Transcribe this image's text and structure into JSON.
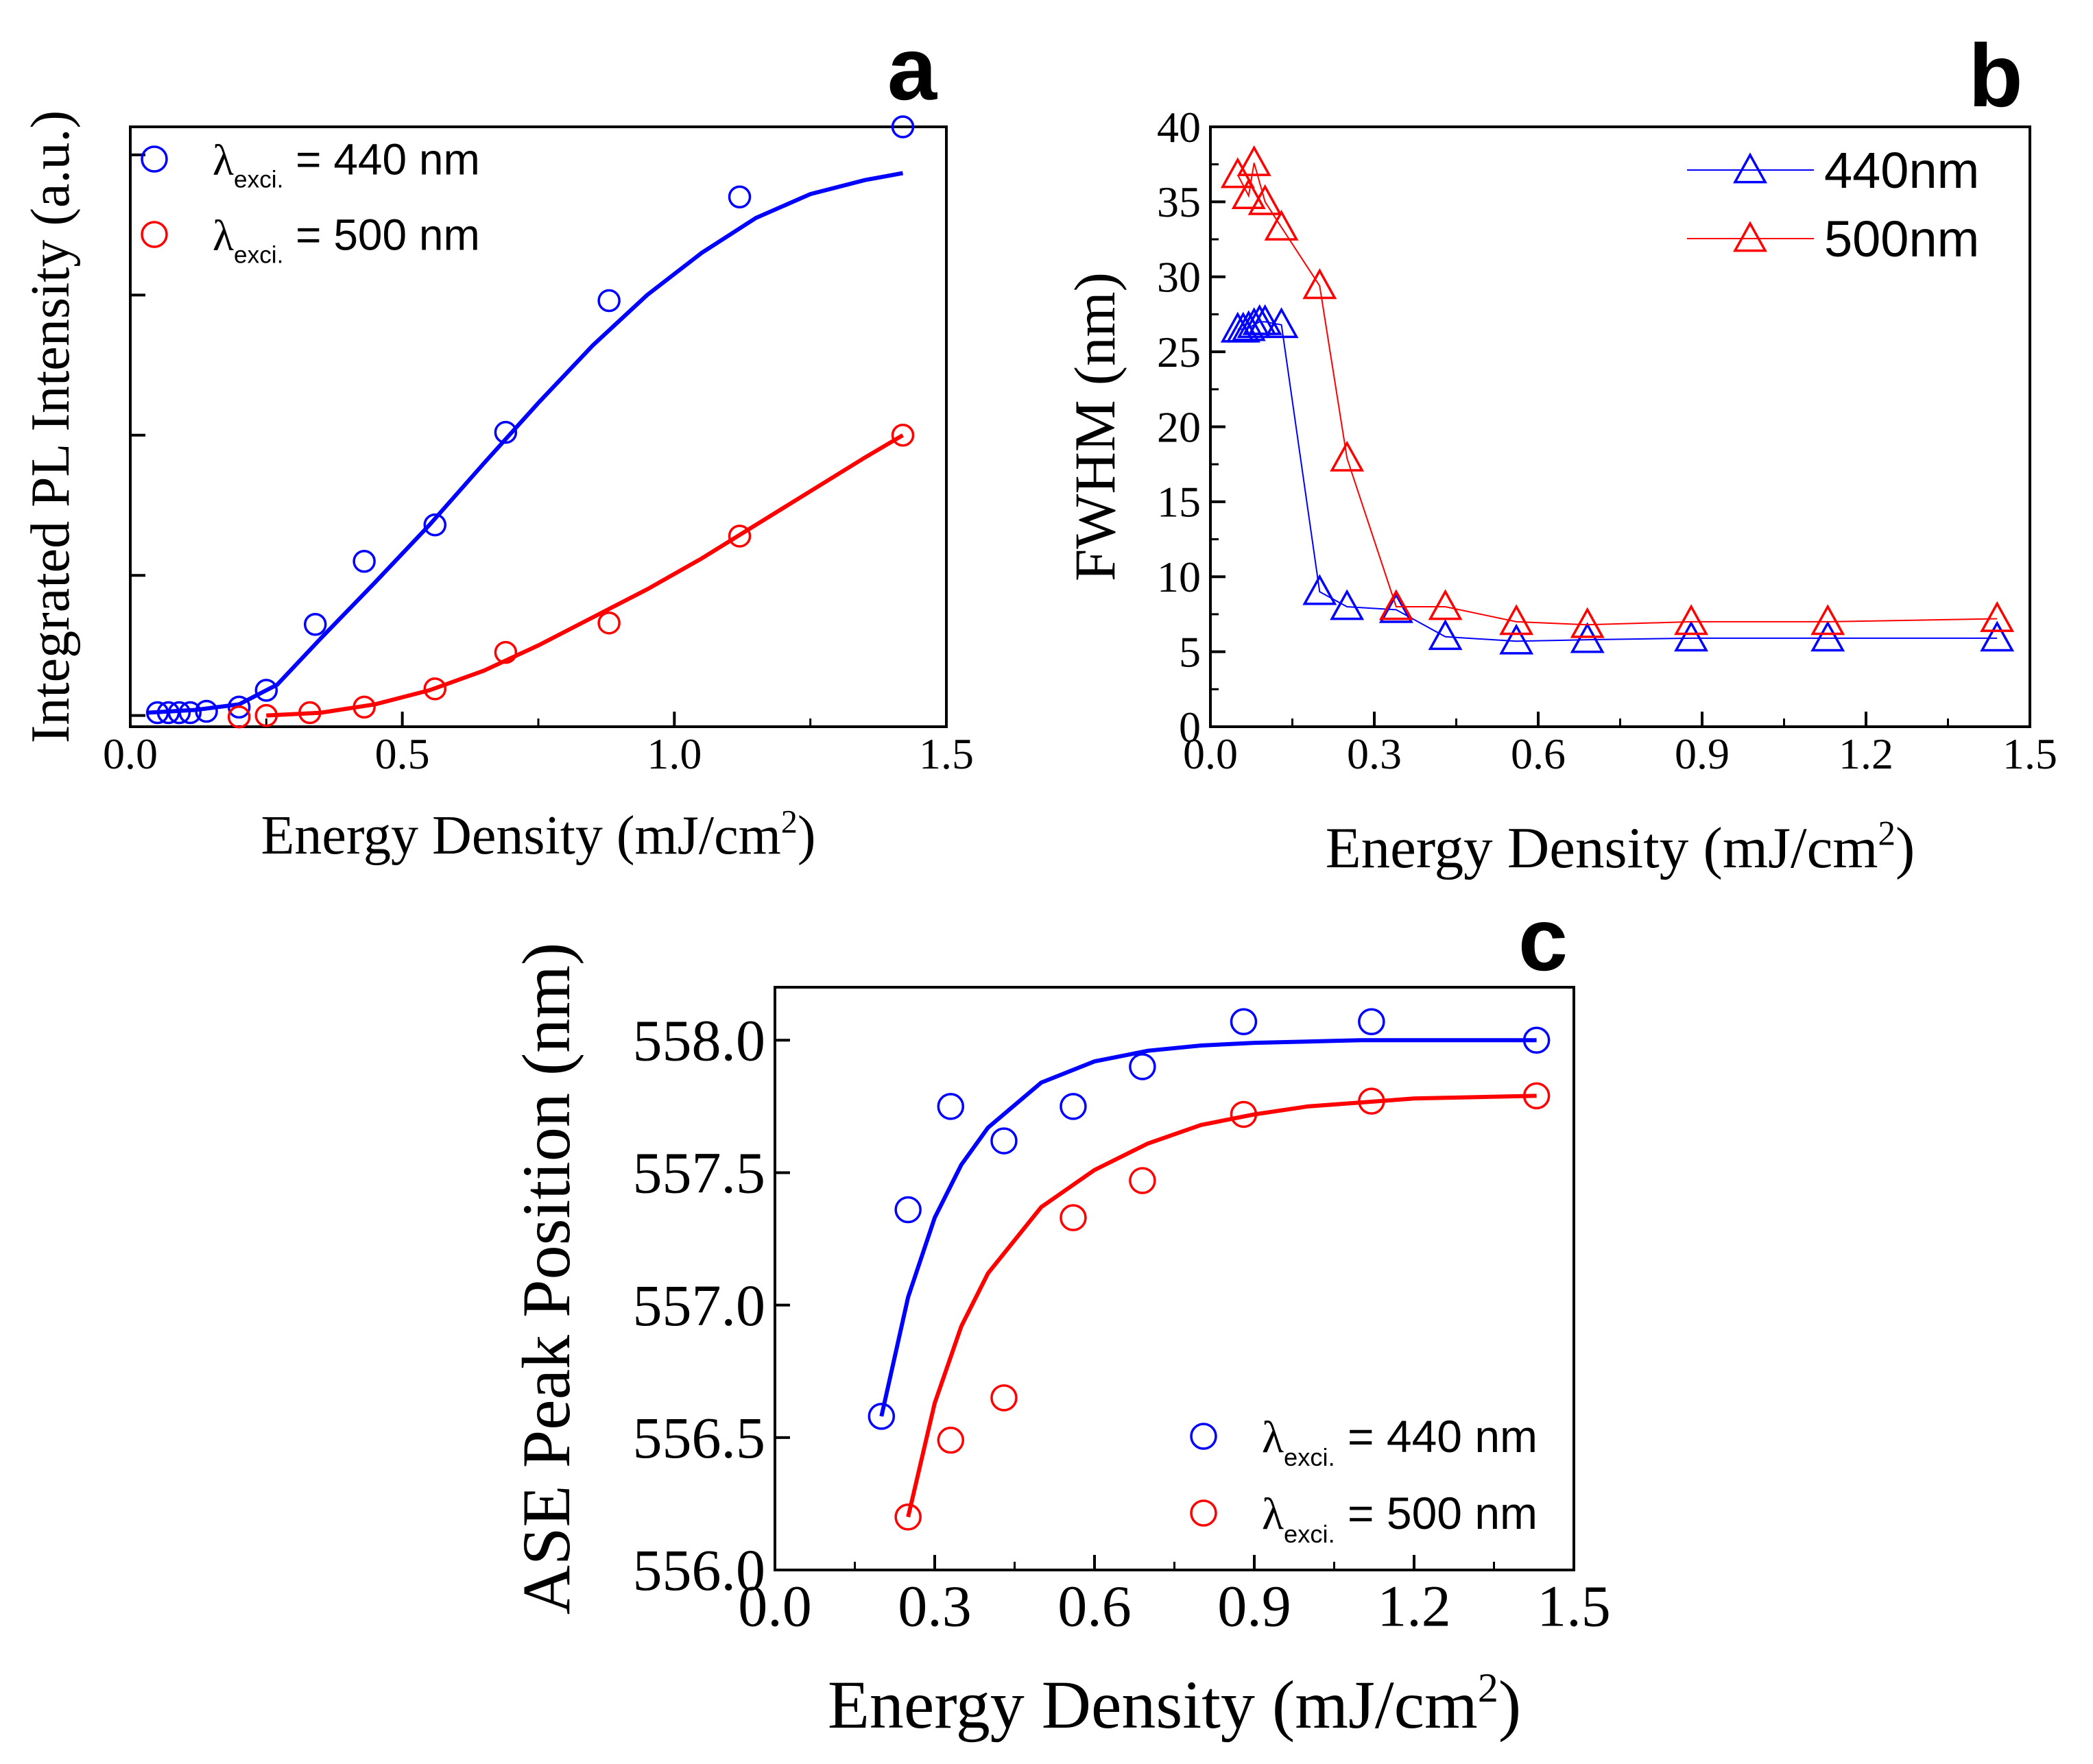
{
  "figure": {
    "colors": {
      "blue": "#0000ff",
      "red": "#ff0000",
      "axis": "#000000"
    }
  },
  "chart_data": [
    {
      "panel": "a",
      "type": "scatter",
      "title": "",
      "xlabel": "Energy Density (mJ/cm",
      "xlabel_sup": "2",
      "xlabel_close": ")",
      "ylabel": "Integrated PL Intensity (a.u.)",
      "xlim": [
        0.0,
        1.5
      ],
      "ylim": [
        -0.08,
        4.2
      ],
      "x_ticks": [
        0.0,
        0.5,
        1.0,
        1.5
      ],
      "x_tick_labels": [
        "0.0",
        "0.5",
        "1.0",
        "1.5"
      ],
      "y_ticks": [
        0,
        1,
        2,
        3,
        4
      ],
      "y_tick_labels": [],
      "legend_position": "top-left",
      "series": [
        {
          "name": "440 nm",
          "legend_lambda": "λ",
          "legend_sub": "exci.",
          "legend_rest": " = 440 nm",
          "color": "#0000ff",
          "marker": "circle",
          "fit": "sigmoid",
          "fit_x_range": [
            0.03,
            1.42
          ],
          "fit_curve": [
            [
              0.03,
              0.02
            ],
            [
              0.12,
              0.04
            ],
            [
              0.2,
              0.08
            ],
            [
              0.27,
              0.22
            ],
            [
              0.35,
              0.55
            ],
            [
              0.45,
              0.95
            ],
            [
              0.55,
              1.36
            ],
            [
              0.65,
              1.8
            ],
            [
              0.75,
              2.23
            ],
            [
              0.85,
              2.64
            ],
            [
              0.95,
              3.0
            ],
            [
              1.05,
              3.3
            ],
            [
              1.15,
              3.55
            ],
            [
              1.25,
              3.72
            ],
            [
              1.35,
              3.82
            ],
            [
              1.42,
              3.87
            ]
          ],
          "x": [
            0.05,
            0.07,
            0.09,
            0.11,
            0.14,
            0.2,
            0.25,
            0.34,
            0.43,
            0.56,
            0.69,
            0.88,
            1.12,
            1.42
          ],
          "y": [
            0.02,
            0.02,
            0.02,
            0.02,
            0.03,
            0.06,
            0.18,
            0.65,
            1.1,
            1.36,
            2.02,
            2.96,
            3.7,
            4.2
          ]
        },
        {
          "name": "500 nm",
          "legend_lambda": "λ",
          "legend_sub": "exci.",
          "legend_rest": " = 500 nm",
          "color": "#ff0000",
          "marker": "circle",
          "fit": "power",
          "fit_x_range": [
            0.25,
            1.42
          ],
          "fit_curve": [
            [
              0.25,
              0.0
            ],
            [
              0.35,
              0.02
            ],
            [
              0.45,
              0.08
            ],
            [
              0.55,
              0.18
            ],
            [
              0.65,
              0.32
            ],
            [
              0.75,
              0.5
            ],
            [
              0.85,
              0.7
            ],
            [
              0.95,
              0.9
            ],
            [
              1.05,
              1.12
            ],
            [
              1.15,
              1.36
            ],
            [
              1.25,
              1.6
            ],
            [
              1.35,
              1.84
            ],
            [
              1.42,
              2.0
            ]
          ],
          "x": [
            0.2,
            0.25,
            0.33,
            0.43,
            0.56,
            0.69,
            0.88,
            1.12,
            1.42
          ],
          "y": [
            -0.01,
            0.0,
            0.02,
            0.06,
            0.19,
            0.45,
            0.66,
            1.28,
            2.0
          ]
        }
      ]
    },
    {
      "panel": "b",
      "type": "line",
      "title": "",
      "xlabel": "Energy Density (mJ/cm",
      "xlabel_sup": "2",
      "xlabel_close": ")",
      "ylabel": "FWHM (nm)",
      "xlim": [
        0.0,
        1.5
      ],
      "ylim": [
        0,
        40
      ],
      "x_ticks": [
        0.0,
        0.3,
        0.6,
        0.9,
        1.2,
        1.5
      ],
      "x_tick_labels": [
        "0.0",
        "0.3",
        "0.6",
        "0.9",
        "1.2",
        "1.5"
      ],
      "y_ticks": [
        0,
        5,
        10,
        15,
        20,
        25,
        30,
        35,
        40
      ],
      "y_tick_labels": [
        "0",
        "5",
        "10",
        "15",
        "20",
        "25",
        "30",
        "35",
        "40"
      ],
      "legend_position": "top-right",
      "series": [
        {
          "name": "440nm",
          "color": "#0000ff",
          "marker": "triangle",
          "x": [
            0.05,
            0.06,
            0.07,
            0.08,
            0.09,
            0.1,
            0.13,
            0.2,
            0.25,
            0.34,
            0.43,
            0.56,
            0.69,
            0.88,
            1.13,
            1.44
          ],
          "y": [
            26.5,
            26.5,
            26.6,
            26.8,
            27.0,
            27.0,
            26.8,
            9.0,
            8.0,
            7.8,
            6.0,
            5.7,
            5.8,
            5.9,
            5.9,
            5.9
          ]
        },
        {
          "name": "500nm",
          "color": "#ff0000",
          "marker": "triangle",
          "x": [
            0.05,
            0.07,
            0.08,
            0.1,
            0.13,
            0.2,
            0.25,
            0.34,
            0.43,
            0.56,
            0.69,
            0.88,
            1.13,
            1.44
          ],
          "y": [
            36.8,
            35.4,
            37.6,
            35.0,
            33.3,
            29.4,
            17.9,
            8.0,
            8.0,
            7.0,
            6.8,
            7.0,
            7.0,
            7.2
          ]
        }
      ]
    },
    {
      "panel": "c",
      "type": "scatter",
      "title": "",
      "xlabel": "Energy Density (mJ/cm",
      "xlabel_sup": "2",
      "xlabel_close": ")",
      "ylabel": "ASE Peak Position (nm)",
      "xlim": [
        0.0,
        1.5
      ],
      "ylim": [
        556.0,
        558.2
      ],
      "x_ticks": [
        0.0,
        0.3,
        0.6,
        0.9,
        1.2,
        1.5
      ],
      "x_tick_labels": [
        "0.0",
        "0.3",
        "0.6",
        "0.9",
        "1.2",
        "1.5"
      ],
      "y_ticks": [
        556.0,
        556.5,
        557.0,
        557.5,
        558.0
      ],
      "y_tick_labels": [
        "556.0",
        "556.5",
        "557.0",
        "557.5",
        "558.0"
      ],
      "legend_position": "bottom-right",
      "series": [
        {
          "name": "440 nm",
          "legend_lambda": "λ",
          "legend_sub": "exci.",
          "legend_rest": " = 440 nm",
          "color": "#0000ff",
          "marker": "circle",
          "fit": "exponential",
          "fit_curve": [
            [
              0.2,
              556.58
            ],
            [
              0.25,
              557.03
            ],
            [
              0.3,
              557.33
            ],
            [
              0.35,
              557.53
            ],
            [
              0.4,
              557.67
            ],
            [
              0.5,
              557.84
            ],
            [
              0.6,
              557.92
            ],
            [
              0.7,
              557.96
            ],
            [
              0.8,
              557.98
            ],
            [
              0.9,
              557.99
            ],
            [
              1.1,
              558.0
            ],
            [
              1.43,
              558.0
            ]
          ],
          "x": [
            0.2,
            0.25,
            0.33,
            0.43,
            0.56,
            0.69,
            0.88,
            1.12,
            1.43
          ],
          "y": [
            556.58,
            557.36,
            557.75,
            557.62,
            557.75,
            557.9,
            558.07,
            558.07,
            558.0
          ]
        },
        {
          "name": "500 nm",
          "legend_lambda": "λ",
          "legend_sub": "exci.",
          "legend_rest": " = 500 nm",
          "color": "#ff0000",
          "marker": "circle",
          "fit": "exponential",
          "fit_curve": [
            [
              0.25,
              556.2
            ],
            [
              0.3,
              556.63
            ],
            [
              0.35,
              556.92
            ],
            [
              0.4,
              557.12
            ],
            [
              0.5,
              557.37
            ],
            [
              0.6,
              557.51
            ],
            [
              0.7,
              557.61
            ],
            [
              0.8,
              557.68
            ],
            [
              0.9,
              557.72
            ],
            [
              1.0,
              557.75
            ],
            [
              1.2,
              557.78
            ],
            [
              1.43,
              557.79
            ]
          ],
          "x": [
            0.25,
            0.33,
            0.43,
            0.56,
            0.69,
            0.88,
            1.12,
            1.43
          ],
          "y": [
            556.2,
            556.49,
            556.65,
            557.33,
            557.47,
            557.72,
            557.77,
            557.79
          ]
        }
      ]
    }
  ]
}
